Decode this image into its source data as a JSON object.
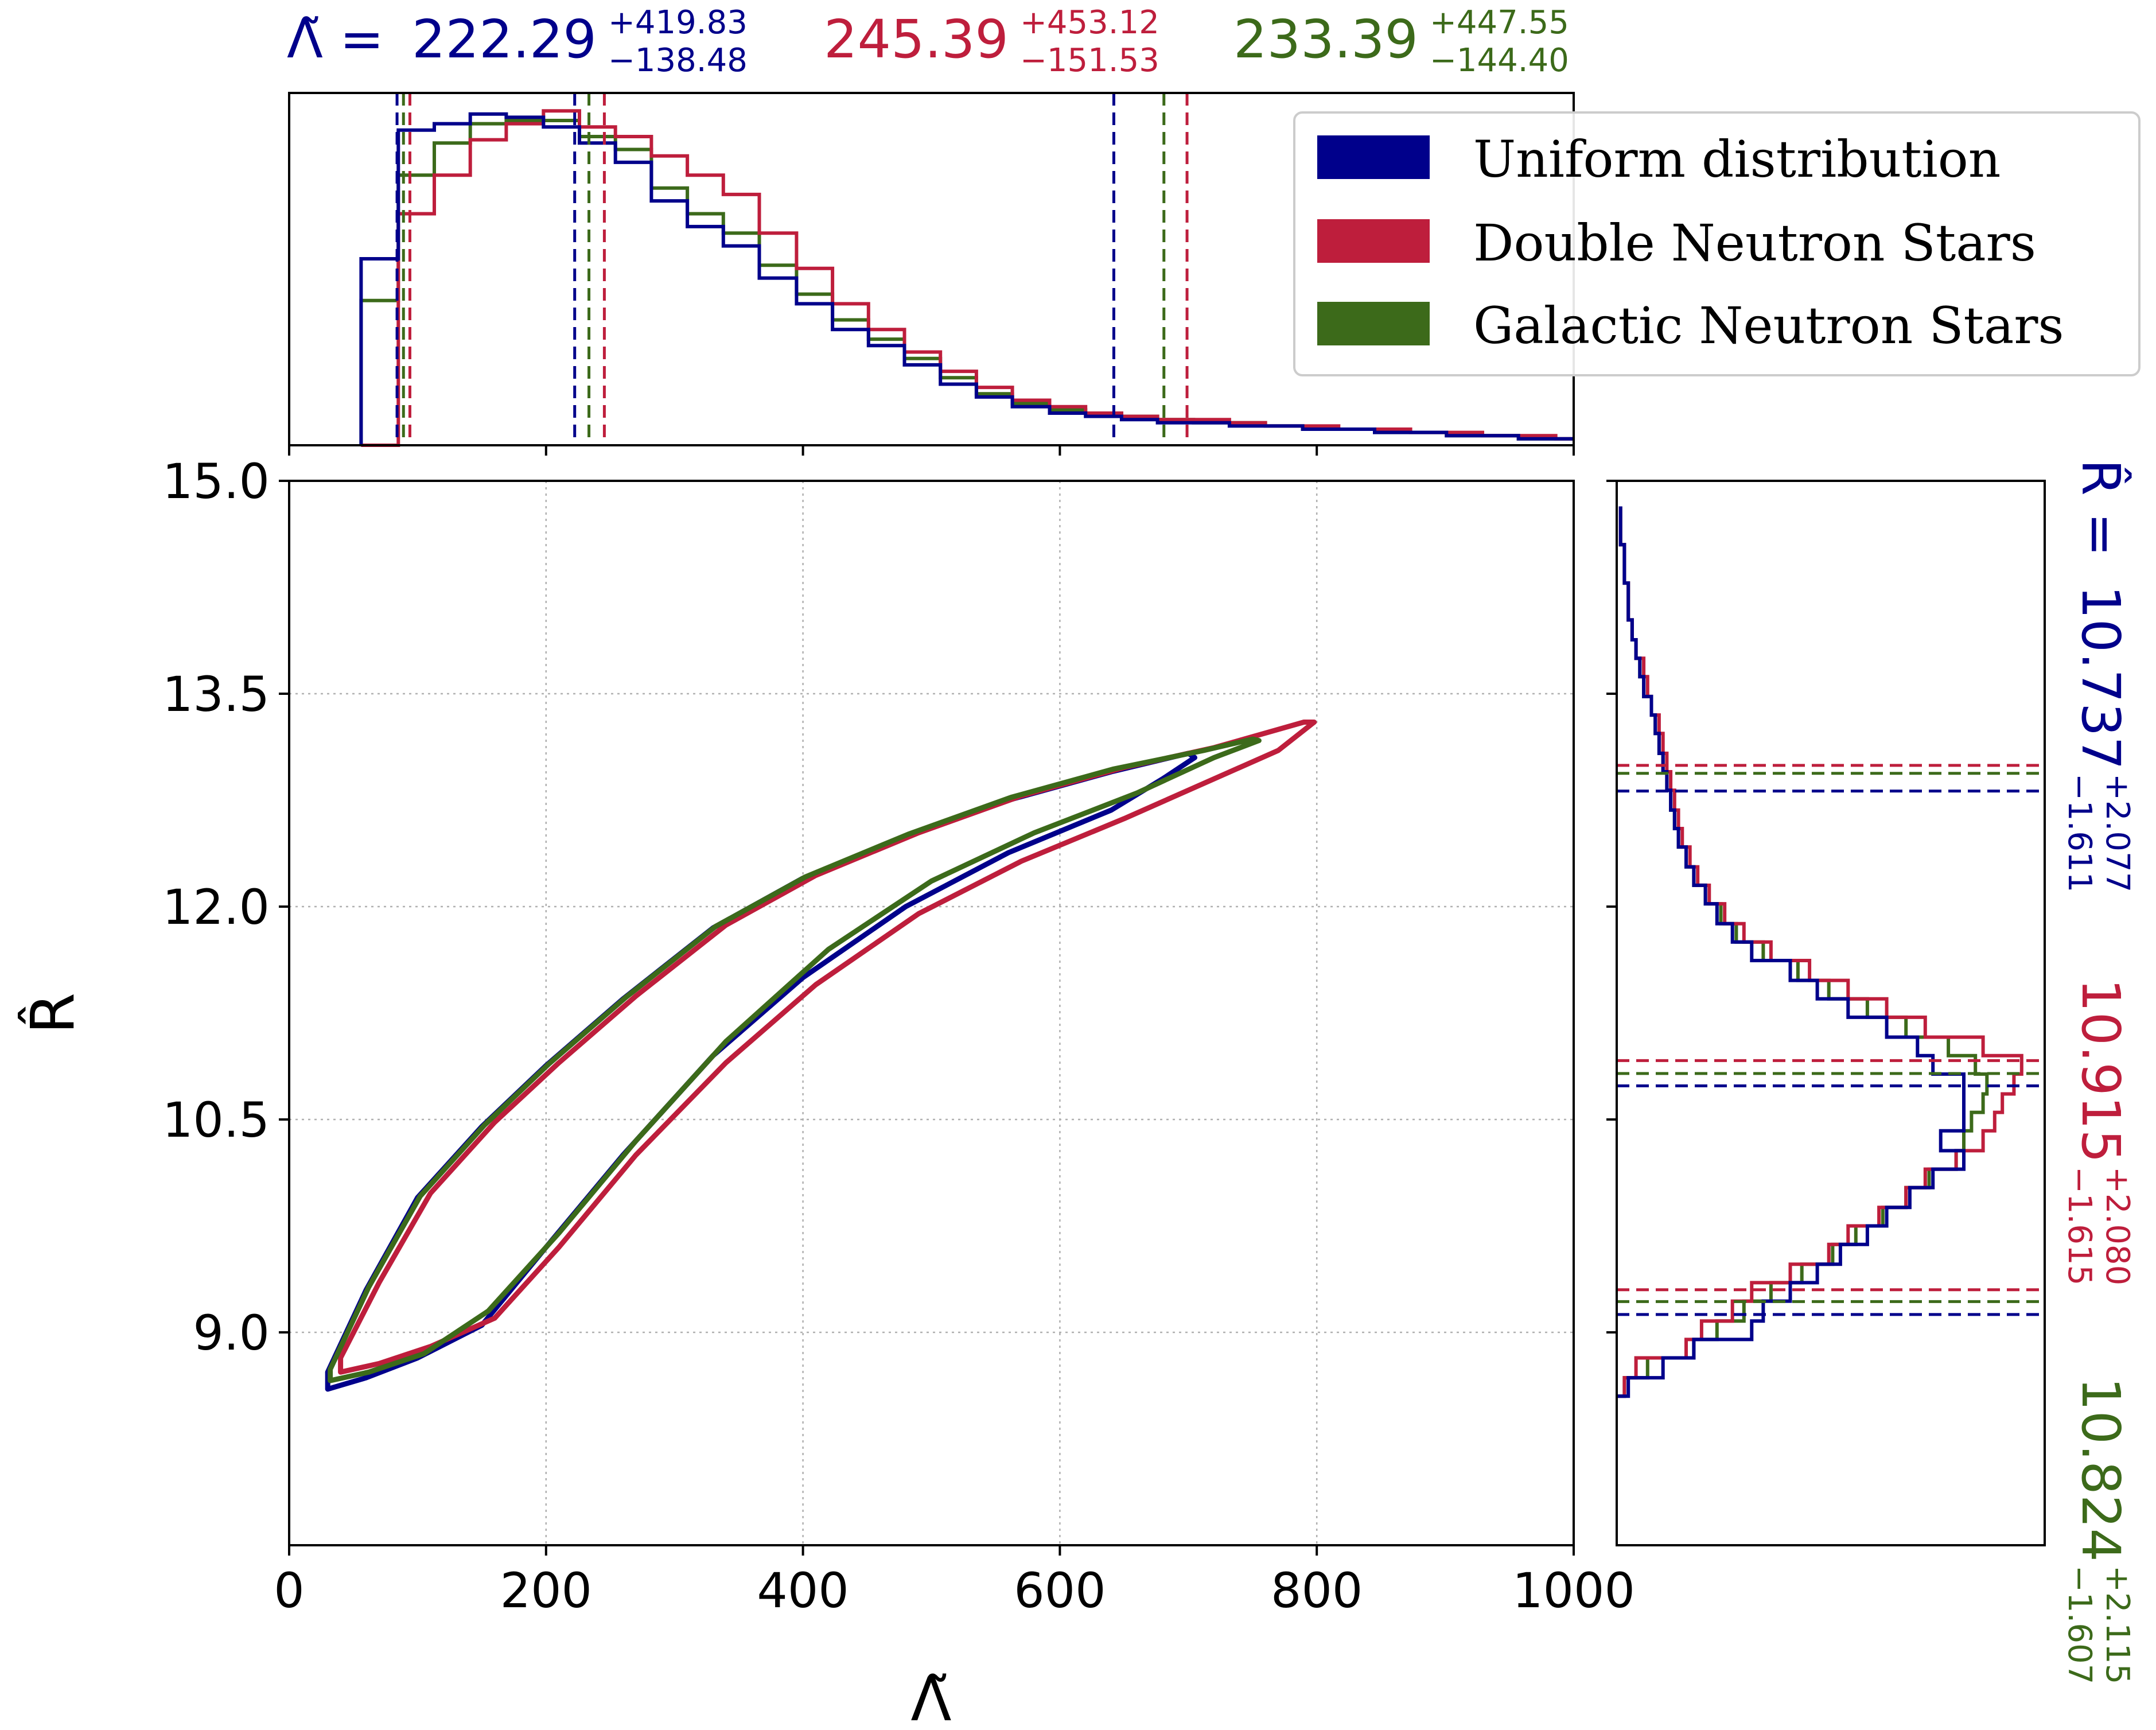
{
  "colors": {
    "uniform": "#00008b",
    "dns": "#be1e3c",
    "galactic": "#3c6a1a"
  },
  "legend": {
    "entries": [
      "Uniform distribution",
      "Double Neutron Stars",
      "Galactic Neutron Stars"
    ]
  },
  "chart_data": [
    {
      "type": "line",
      "panel": "joint",
      "xlabel": "Λ̃",
      "ylabel": "R̂",
      "xlim": [
        0,
        1000
      ],
      "ylim": [
        7.5,
        15.0
      ],
      "xticks": [
        "0",
        "200",
        "400",
        "600",
        "800",
        "1000"
      ],
      "yticks": [
        "9.0",
        "10.5",
        "12.0",
        "13.5",
        "15.0"
      ],
      "grid": true,
      "series": [
        {
          "name": "Uniform distribution",
          "x": [
            30,
            60,
            100,
            150,
            200,
            260,
            330,
            400,
            480,
            560,
            640,
            700,
            705,
            680,
            640,
            560,
            480,
            400,
            330,
            260,
            200,
            150,
            100,
            60,
            30,
            30
          ],
          "y": [
            8.72,
            9.3,
            9.95,
            10.45,
            10.88,
            11.35,
            11.85,
            12.2,
            12.5,
            12.75,
            12.95,
            13.08,
            13.05,
            12.9,
            12.68,
            12.38,
            12.0,
            11.5,
            10.95,
            10.25,
            9.6,
            9.05,
            8.82,
            8.68,
            8.6,
            8.72
          ]
        },
        {
          "name": "Double Neutron Stars",
          "x": [
            40,
            70,
            110,
            160,
            210,
            270,
            340,
            410,
            490,
            570,
            650,
            720,
            790,
            798,
            770,
            720,
            650,
            570,
            490,
            410,
            340,
            270,
            210,
            160,
            110,
            70,
            40,
            40
          ],
          "y": [
            8.82,
            9.35,
            9.98,
            10.48,
            10.9,
            11.37,
            11.87,
            12.22,
            12.52,
            12.78,
            12.98,
            13.12,
            13.3,
            13.3,
            13.1,
            12.9,
            12.62,
            12.32,
            11.95,
            11.45,
            10.9,
            10.25,
            9.6,
            9.1,
            8.9,
            8.78,
            8.72,
            8.82
          ]
        },
        {
          "name": "Galactic Neutron Stars",
          "x": [
            32,
            62,
            102,
            152,
            202,
            262,
            332,
            402,
            482,
            562,
            642,
            712,
            750,
            755,
            720,
            660,
            580,
            500,
            420,
            340,
            270,
            210,
            155,
            105,
            62,
            32,
            32
          ],
          "y": [
            8.74,
            9.32,
            9.96,
            10.46,
            10.89,
            11.36,
            11.86,
            12.21,
            12.51,
            12.77,
            12.97,
            13.1,
            13.18,
            13.17,
            13.05,
            12.8,
            12.52,
            12.18,
            11.7,
            11.05,
            10.35,
            9.7,
            9.15,
            8.85,
            8.72,
            8.66,
            8.74
          ]
        }
      ]
    },
    {
      "type": "line",
      "panel": "marginal-top",
      "variable": "Λ̃",
      "bin_edges": [
        56,
        85,
        113,
        141,
        169,
        198,
        226,
        254,
        282,
        310,
        338,
        366,
        395,
        423,
        451,
        479,
        507,
        535,
        563,
        592,
        620,
        648,
        676,
        704,
        732,
        760,
        789,
        817,
        845,
        873,
        901,
        929,
        957,
        986,
        1000
      ],
      "series": [
        {
          "name": "Uniform distribution",
          "values": [
            0.58,
            0.98,
            1.0,
            1.03,
            1.02,
            0.99,
            0.94,
            0.88,
            0.76,
            0.68,
            0.62,
            0.52,
            0.44,
            0.36,
            0.31,
            0.25,
            0.19,
            0.15,
            0.12,
            0.1,
            0.09,
            0.08,
            0.07,
            0.07,
            0.06,
            0.06,
            0.05,
            0.05,
            0.04,
            0.04,
            0.03,
            0.03,
            0.02,
            0.02
          ]
        },
        {
          "name": "Double Neutron Stars",
          "values": [
            0.0,
            0.72,
            0.84,
            0.95,
            1.0,
            1.04,
            0.99,
            0.96,
            0.9,
            0.84,
            0.78,
            0.66,
            0.55,
            0.44,
            0.36,
            0.29,
            0.23,
            0.18,
            0.14,
            0.12,
            0.1,
            0.09,
            0.08,
            0.08,
            0.07,
            0.06,
            0.06,
            0.05,
            0.05,
            0.04,
            0.04,
            0.03,
            0.03,
            0.02
          ]
        },
        {
          "name": "Galactic Neutron Stars",
          "values": [
            0.45,
            0.84,
            0.94,
            1.0,
            1.01,
            1.01,
            0.96,
            0.92,
            0.8,
            0.72,
            0.66,
            0.56,
            0.47,
            0.39,
            0.33,
            0.27,
            0.21,
            0.16,
            0.13,
            0.11,
            0.1,
            0.09,
            0.08,
            0.07,
            0.07,
            0.06,
            0.05,
            0.05,
            0.04,
            0.04,
            0.03,
            0.03,
            0.02,
            0.02
          ]
        }
      ],
      "quantile_lines": {
        "Uniform distribution": [
          84,
          222.29,
          642
        ],
        "Double Neutron Stars": [
          94,
          245.39,
          699
        ],
        "Galactic Neutron Stars": [
          89,
          233.39,
          681
        ]
      }
    },
    {
      "type": "line",
      "panel": "marginal-right",
      "variable": "R̂",
      "bin_edges": [
        8.55,
        8.68,
        8.82,
        8.95,
        9.08,
        9.22,
        9.35,
        9.48,
        9.62,
        9.75,
        9.88,
        10.02,
        10.15,
        10.28,
        10.42,
        10.55,
        10.68,
        10.82,
        10.95,
        11.08,
        11.22,
        11.35,
        11.48,
        11.62,
        11.75,
        11.88,
        12.02,
        12.15,
        12.28,
        12.42,
        12.55,
        12.68,
        12.82,
        12.95,
        13.08,
        13.22,
        13.35,
        13.48,
        13.62,
        13.75,
        13.88,
        14.02,
        14.15,
        14.28,
        14.42,
        14.55,
        14.68,
        14.82
      ],
      "series": [
        {
          "name": "Uniform distribution",
          "values": [
            0.03,
            0.12,
            0.2,
            0.35,
            0.38,
            0.45,
            0.52,
            0.58,
            0.65,
            0.7,
            0.76,
            0.82,
            0.9,
            0.84,
            0.9,
            0.9,
            0.9,
            0.82,
            0.78,
            0.7,
            0.6,
            0.52,
            0.45,
            0.35,
            0.3,
            0.26,
            0.23,
            0.2,
            0.18,
            0.16,
            0.15,
            0.14,
            0.13,
            0.12,
            0.11,
            0.1,
            0.09,
            0.07,
            0.06,
            0.05,
            0.04,
            0.03,
            0.03,
            0.02,
            0.02,
            0.01,
            0.01
          ]
        },
        {
          "name": "Double Neutron Stars",
          "values": [
            0.02,
            0.05,
            0.18,
            0.22,
            0.3,
            0.35,
            0.45,
            0.55,
            0.6,
            0.68,
            0.75,
            0.8,
            0.88,
            0.95,
            0.98,
            1.0,
            1.03,
            1.05,
            0.95,
            0.8,
            0.7,
            0.6,
            0.5,
            0.4,
            0.33,
            0.28,
            0.24,
            0.21,
            0.19,
            0.17,
            0.16,
            0.15,
            0.14,
            0.13,
            0.12,
            0.11,
            0.09,
            0.08,
            0.07,
            0.05,
            0.04,
            0.03,
            0.03,
            0.02,
            0.02,
            0.01,
            0.01
          ]
        },
        {
          "name": "Galactic Neutron Stars",
          "values": [
            0.02,
            0.08,
            0.2,
            0.26,
            0.33,
            0.4,
            0.48,
            0.56,
            0.62,
            0.69,
            0.75,
            0.81,
            0.88,
            0.9,
            0.92,
            0.95,
            0.96,
            0.93,
            0.86,
            0.75,
            0.65,
            0.55,
            0.47,
            0.38,
            0.31,
            0.27,
            0.23,
            0.2,
            0.18,
            0.16,
            0.15,
            0.14,
            0.13,
            0.12,
            0.11,
            0.1,
            0.09,
            0.07,
            0.06,
            0.05,
            0.04,
            0.03,
            0.03,
            0.02,
            0.02,
            0.01,
            0.01
          ]
        }
      ],
      "quantile_lines": {
        "Uniform distribution": [
          9.126,
          10.737,
          12.814
        ],
        "Double Neutron Stars": [
          9.3,
          10.915,
          12.995
        ],
        "Galactic Neutron Stars": [
          9.217,
          10.824,
          12.939
        ]
      }
    }
  ],
  "annotations": {
    "lambda_prefix": "Λ̃ = ",
    "lambda": [
      {
        "value": "222.29",
        "plus": "+419.83",
        "minus": "−138.48"
      },
      {
        "value": "245.39",
        "plus": "+453.12",
        "minus": "−151.53"
      },
      {
        "value": "233.39",
        "plus": "+447.55",
        "minus": "−144.40"
      }
    ],
    "r_prefix": "R̂ = ",
    "r": [
      {
        "value": "10.737",
        "plus": "+2.077",
        "minus": "−1.611"
      },
      {
        "value": "10.915",
        "plus": "+2.080",
        "minus": "−1.615"
      },
      {
        "value": "10.824",
        "plus": "+2.115",
        "minus": "−1.607"
      }
    ]
  }
}
